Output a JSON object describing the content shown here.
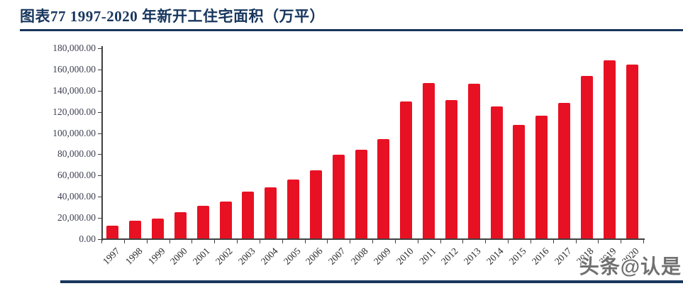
{
  "header": {
    "title": "图表77 1997-2020 年新开工住宅面积（万平）"
  },
  "watermark": {
    "text": "头条@认是"
  },
  "colors": {
    "accent_navy": "#17365d",
    "bar_red": "#e81123",
    "axis_line": "#404040",
    "y_label_color": "#3d3f50",
    "x_label_color": "#262626",
    "watermark_gray": "#707070"
  },
  "chart_data": {
    "type": "bar",
    "title": "1997-2020 年新开工住宅面积（万平）",
    "xlabel": "",
    "ylabel": "",
    "categories": [
      "1997",
      "1998",
      "1999",
      "2000",
      "2001",
      "2002",
      "2003",
      "2004",
      "2005",
      "2006",
      "2007",
      "2008",
      "2009",
      "2010",
      "2011",
      "2012",
      "2013",
      "2014",
      "2015",
      "2016",
      "2017",
      "2018",
      "2019",
      "2020"
    ],
    "values": [
      12500,
      17500,
      19500,
      25500,
      31500,
      35500,
      45000,
      49000,
      56000,
      65000,
      79500,
      84500,
      94500,
      130000,
      147500,
      131000,
      146500,
      125000,
      107500,
      116500,
      128500,
      154000,
      168500,
      164500
    ],
    "ylim": [
      0,
      180000
    ],
    "ytick_step": 20000,
    "ytick_format": "#,##0.00",
    "grid": false,
    "legend_position": "none",
    "bar_color": "#e81123",
    "x_label_rotation_deg": -45
  }
}
